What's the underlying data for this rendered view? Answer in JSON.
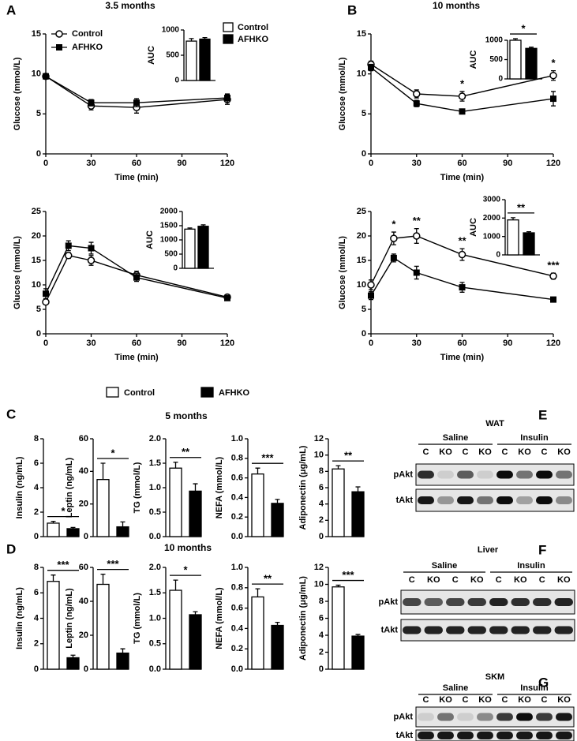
{
  "panels": [
    {
      "label": "A",
      "title": "3.5 months"
    },
    {
      "label": "B",
      "title": "10 months"
    },
    {
      "label": "C",
      "title": "5 months"
    },
    {
      "label": "D",
      "title": "10 months"
    },
    {
      "label": "E"
    },
    {
      "label": "F"
    },
    {
      "label": "G"
    }
  ],
  "legend": {
    "series": [
      {
        "name": "Control",
        "color": "#ffffff"
      },
      {
        "name": "AFHKO",
        "color": "#000000"
      }
    ]
  },
  "chart_data": [
    {
      "type": "line",
      "xlabel": "Time (min)",
      "ylabel": "Glucose (mmol/L)",
      "x": [
        0,
        30,
        60,
        120
      ],
      "xlim": [
        0,
        120
      ],
      "xticks": [
        0,
        30,
        60,
        90,
        120
      ],
      "ylim": [
        0,
        15
      ],
      "yticks": [
        0,
        5,
        10,
        15
      ],
      "legend": "upper left",
      "series": [
        {
          "name": "Control",
          "color": "#000000",
          "marker": "open-circle",
          "values": [
            9.7,
            6.0,
            5.8,
            6.8
          ],
          "errors": [
            0.3,
            0.5,
            0.7,
            0.6
          ]
        },
        {
          "name": "AFHKO",
          "color": "#000000",
          "marker": "filled-square",
          "values": [
            9.7,
            6.4,
            6.4,
            7.0
          ],
          "errors": [
            0.3,
            0.4,
            0.5,
            0.5
          ]
        }
      ],
      "inset": {
        "type": "bar",
        "ylabel": "AUC",
        "ylim": [
          0,
          1000
        ],
        "yticks": [
          0,
          500,
          1000
        ],
        "legend": "right",
        "series": [
          {
            "name": "Control",
            "color": "#ffffff",
            "values": [
              780
            ],
            "errors": [
              50
            ]
          },
          {
            "name": "AFHKO",
            "color": "#000000",
            "values": [
              820
            ],
            "errors": [
              30
            ]
          }
        ]
      }
    },
    {
      "type": "line",
      "xlabel": "Time (min)",
      "ylabel": "Glucose (mmol/L)",
      "x": [
        0,
        15,
        30,
        60,
        120
      ],
      "xlim": [
        0,
        120
      ],
      "xticks": [
        0,
        30,
        60,
        90,
        120
      ],
      "ylim": [
        0,
        25
      ],
      "yticks": [
        0,
        5,
        10,
        15,
        20,
        25
      ],
      "series": [
        {
          "color": "#000000",
          "marker": "open-circle",
          "values": [
            6.5,
            16,
            15,
            12,
            7.5
          ],
          "errors": [
            0.5,
            0.6,
            1,
            0.8,
            0.3
          ]
        },
        {
          "color": "#000000",
          "marker": "filled-square",
          "values": [
            8.2,
            18,
            17.5,
            11.5,
            7.3
          ],
          "errors": [
            1,
            1,
            1.2,
            0.8,
            0.4
          ]
        }
      ],
      "inset": {
        "type": "bar",
        "ylabel": "AUC",
        "ylim": [
          0,
          2000
        ],
        "yticks": [
          0,
          500,
          1000,
          1500,
          2000
        ],
        "series": [
          {
            "color": "#ffffff",
            "values": [
              1380
            ],
            "errors": [
              40
            ]
          },
          {
            "color": "#000000",
            "values": [
              1480
            ],
            "errors": [
              50
            ]
          }
        ]
      }
    },
    {
      "type": "line",
      "xlabel": "Time (min)",
      "ylabel": "Glucose (mmol/L)",
      "x": [
        0,
        30,
        60,
        120
      ],
      "xlim": [
        0,
        120
      ],
      "xticks": [
        0,
        30,
        60,
        90,
        120
      ],
      "ylim": [
        0,
        15
      ],
      "yticks": [
        0,
        5,
        10,
        15
      ],
      "series": [
        {
          "color": "#000000",
          "marker": "open-circle",
          "values": [
            11.2,
            7.5,
            7.2,
            9.8
          ],
          "errors": [
            0.4,
            0.5,
            0.6,
            0.6
          ]
        },
        {
          "color": "#000000",
          "marker": "filled-square",
          "values": [
            10.8,
            6.3,
            5.3,
            6.9
          ],
          "errors": [
            0.4,
            0.4,
            0.2,
            0.9
          ]
        }
      ],
      "significance": [
        null,
        null,
        "*",
        "*"
      ],
      "inset": {
        "type": "bar",
        "ylabel": "AUC",
        "ylim": [
          0,
          1000
        ],
        "yticks": [
          0,
          500,
          1000
        ],
        "significance": "*",
        "series": [
          {
            "color": "#ffffff",
            "values": [
              1000
            ],
            "errors": [
              40
            ]
          },
          {
            "color": "#000000",
            "values": [
              790
            ],
            "errors": [
              30
            ]
          }
        ]
      }
    },
    {
      "type": "line",
      "xlabel": "Time (min)",
      "ylabel": "Glucose (mmol/L)",
      "x": [
        0,
        15,
        30,
        60,
        120
      ],
      "xlim": [
        0,
        120
      ],
      "xticks": [
        0,
        30,
        60,
        90,
        120
      ],
      "ylim": [
        0,
        25
      ],
      "yticks": [
        0,
        5,
        10,
        15,
        20,
        25
      ],
      "series": [
        {
          "color": "#000000",
          "marker": "open-circle",
          "values": [
            10,
            19.5,
            20,
            16.2,
            11.8
          ],
          "errors": [
            1,
            1.3,
            1.5,
            1.2,
            0.6
          ]
        },
        {
          "color": "#000000",
          "marker": "filled-square",
          "values": [
            7.8,
            15.5,
            12.5,
            9.5,
            7
          ],
          "errors": [
            0.8,
            0.8,
            1.3,
            1,
            0.2
          ]
        }
      ],
      "significance": [
        null,
        "*",
        "**",
        "**",
        "***"
      ],
      "inset": {
        "type": "bar",
        "ylabel": "AUC",
        "ylim": [
          0,
          3000
        ],
        "yticks": [
          0,
          1000,
          2000,
          3000
        ],
        "significance": "**",
        "series": [
          {
            "color": "#ffffff",
            "values": [
              1900
            ],
            "errors": [
              120
            ]
          },
          {
            "color": "#000000",
            "values": [
              1200
            ],
            "errors": [
              60
            ]
          }
        ]
      }
    },
    {
      "type": "bar",
      "ylabel": "Insulin (ng/mL)",
      "ylim": [
        0,
        8
      ],
      "yticks": [
        0,
        2,
        4,
        6,
        8
      ],
      "significance": "*",
      "series": [
        {
          "color": "#ffffff",
          "values": [
            1.1
          ],
          "errors": [
            0.15
          ]
        },
        {
          "color": "#000000",
          "values": [
            0.65
          ],
          "errors": [
            0.1
          ]
        }
      ]
    },
    {
      "type": "bar",
      "ylabel": "Leptin (ng/mL)",
      "ylim": [
        0,
        60
      ],
      "yticks": [
        0,
        20,
        40,
        60
      ],
      "significance": "*",
      "series": [
        {
          "color": "#ffffff",
          "values": [
            35
          ],
          "errors": [
            10
          ]
        },
        {
          "color": "#000000",
          "values": [
            6
          ],
          "errors": [
            3
          ]
        }
      ]
    },
    {
      "type": "bar",
      "ylabel": "TG (mmol/L)",
      "ylim": [
        0,
        2
      ],
      "yticks": [
        {
          "value": 0,
          "label": "0.0"
        },
        0.5,
        {
          "value": 1,
          "label": "1.0"
        },
        1.5,
        {
          "value": 2,
          "label": "2.0"
        }
      ],
      "significance": "**",
      "series": [
        {
          "color": "#ffffff",
          "values": [
            1.4
          ],
          "errors": [
            0.12
          ]
        },
        {
          "color": "#000000",
          "values": [
            0.93
          ],
          "errors": [
            0.15
          ]
        }
      ]
    },
    {
      "type": "bar",
      "ylabel": "NEFA (mmol/L)",
      "ylim": [
        0,
        1
      ],
      "yticks": [
        {
          "value": 0,
          "label": "0.0"
        },
        0.2,
        0.4,
        0.6,
        0.8,
        {
          "value": 1,
          "label": "1.0"
        }
      ],
      "significance": "***",
      "series": [
        {
          "color": "#ffffff",
          "values": [
            0.64
          ],
          "errors": [
            0.06
          ]
        },
        {
          "color": "#000000",
          "values": [
            0.34
          ],
          "errors": [
            0.04
          ]
        }
      ]
    },
    {
      "type": "bar",
      "ylabel": "Adiponectin (μg/mL)",
      "ylim": [
        0,
        12
      ],
      "yticks": [
        0,
        2,
        4,
        6,
        8,
        10,
        12
      ],
      "significance": "**",
      "series": [
        {
          "color": "#ffffff",
          "values": [
            8.3
          ],
          "errors": [
            0.4
          ]
        },
        {
          "color": "#000000",
          "values": [
            5.5
          ],
          "errors": [
            0.6
          ]
        }
      ]
    },
    {
      "type": "bar",
      "ylabel": "Insulin (ng/mL)",
      "ylim": [
        0,
        8
      ],
      "yticks": [
        0,
        2,
        4,
        6,
        8
      ],
      "significance": "***",
      "series": [
        {
          "color": "#ffffff",
          "values": [
            6.9
          ],
          "errors": [
            0.5
          ]
        },
        {
          "color": "#000000",
          "values": [
            0.9
          ],
          "errors": [
            0.2
          ]
        }
      ]
    },
    {
      "type": "bar",
      "ylabel": "Leptin (ng/mL)",
      "ylim": [
        0,
        60
      ],
      "yticks": [
        0,
        20,
        40,
        60
      ],
      "significance": "***",
      "series": [
        {
          "color": "#ffffff",
          "values": [
            50
          ],
          "errors": [
            6
          ]
        },
        {
          "color": "#000000",
          "values": [
            9.5
          ],
          "errors": [
            2.5
          ]
        }
      ]
    },
    {
      "type": "bar",
      "ylabel": "TG (mmol/L)",
      "ylim": [
        0,
        2
      ],
      "yticks": [
        {
          "value": 0,
          "label": "0.0"
        },
        0.5,
        {
          "value": 1,
          "label": "1.0"
        },
        1.5,
        {
          "value": 2,
          "label": "2.0"
        }
      ],
      "significance": "*",
      "series": [
        {
          "color": "#ffffff",
          "values": [
            1.55
          ],
          "errors": [
            0.2
          ]
        },
        {
          "color": "#000000",
          "values": [
            1.07
          ],
          "errors": [
            0.06
          ]
        }
      ]
    },
    {
      "type": "bar",
      "ylabel": "NEFA (mmol/L)",
      "ylim": [
        0,
        1
      ],
      "yticks": [
        {
          "value": 0,
          "label": "0.0"
        },
        0.2,
        0.4,
        0.6,
        0.8,
        {
          "value": 1,
          "label": "1.0"
        }
      ],
      "significance": "**",
      "series": [
        {
          "color": "#ffffff",
          "values": [
            0.71
          ],
          "errors": [
            0.08
          ]
        },
        {
          "color": "#000000",
          "values": [
            0.43
          ],
          "errors": [
            0.03
          ]
        }
      ]
    },
    {
      "type": "bar",
      "ylabel": "Adiponectin (μg/mL)",
      "ylim": [
        0,
        12
      ],
      "yticks": [
        0,
        2,
        4,
        6,
        8,
        10,
        12
      ],
      "significance": "***",
      "series": [
        {
          "color": "#ffffff",
          "values": [
            9.7
          ],
          "errors": [
            0.2
          ]
        },
        {
          "color": "#000000",
          "values": [
            3.9
          ],
          "errors": [
            0.2
          ]
        }
      ]
    }
  ],
  "blots": [
    {
      "title": "WAT",
      "groups": [
        "Saline",
        "Insulin"
      ],
      "lanes": [
        "C",
        "KO",
        "C",
        "KO",
        "C",
        "KO",
        "C",
        "KO"
      ],
      "rows": [
        "pAkt",
        "tAkt"
      ]
    },
    {
      "title": "Liver",
      "groups": [
        "Saline",
        "Insulin"
      ],
      "lanes": [
        "C",
        "KO",
        "C",
        "KO",
        "C",
        "KO",
        "C",
        "KO"
      ],
      "rows": [
        "pAkt",
        "tAkt"
      ]
    },
    {
      "title": "SKM",
      "groups": [
        "Saline",
        "Insulin"
      ],
      "lanes": [
        "C",
        "KO",
        "C",
        "KO",
        "C",
        "KO",
        "C",
        "KO"
      ],
      "rows": [
        "pAkt",
        "tAkt"
      ]
    }
  ]
}
